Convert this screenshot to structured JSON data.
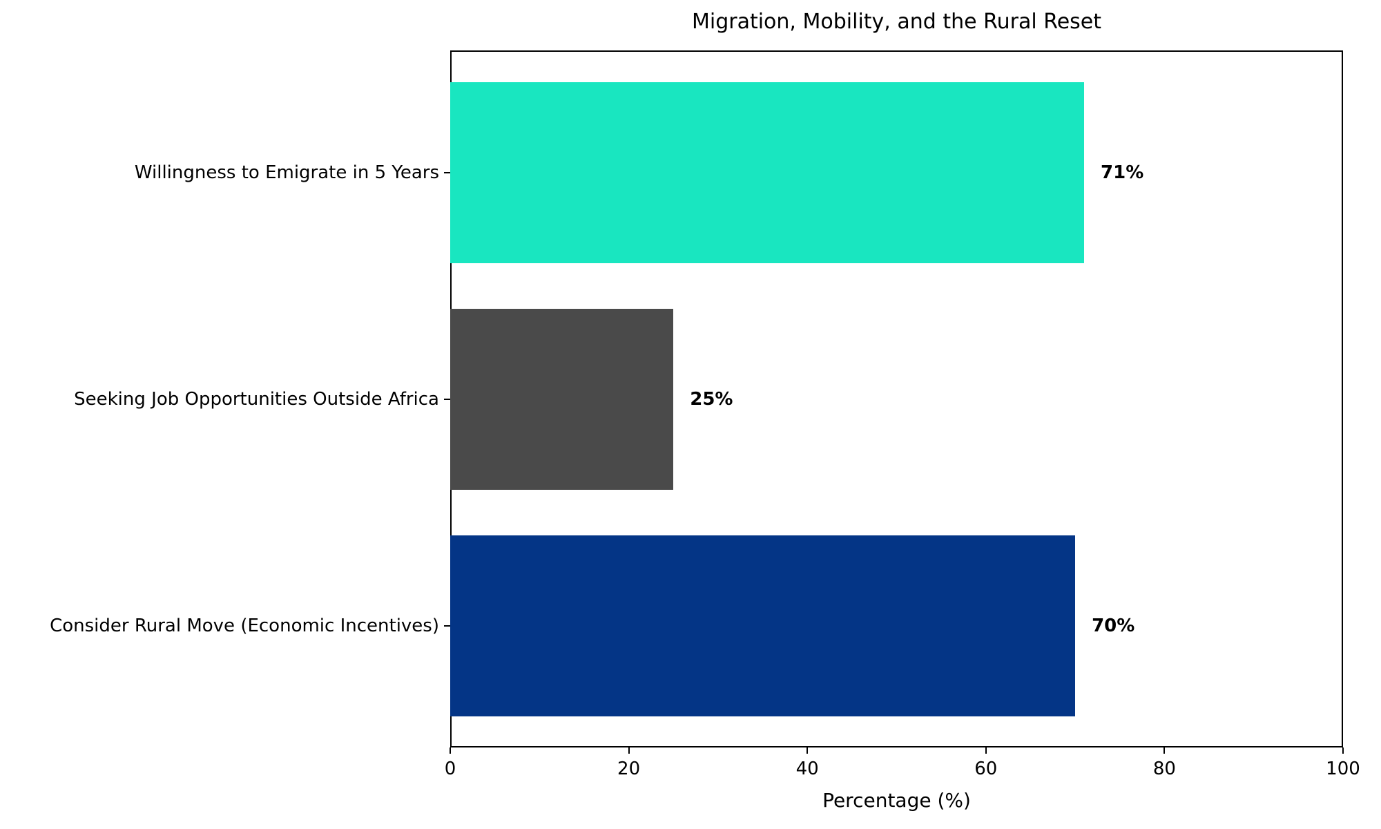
{
  "chart_data": {
    "type": "bar",
    "orientation": "horizontal",
    "title": "Migration, Mobility, and the Rural Reset",
    "categories": [
      "Willingness to Emigrate in 5 Years",
      "Seeking Job Opportunities Outside Africa",
      "Consider Rural Move (Economic Incentives)"
    ],
    "values": [
      71,
      25,
      70
    ],
    "value_labels": [
      "71%",
      "25%",
      "70%"
    ],
    "bar_colors": [
      "#19E6C0",
      "#4A4A4A",
      "#043586"
    ],
    "xlabel": "Percentage (%)",
    "ylabel": "",
    "xlim": [
      0,
      100
    ],
    "xticks": [
      0,
      20,
      40,
      60,
      80,
      100
    ],
    "xtick_labels": [
      "0",
      "20",
      "40",
      "60",
      "80",
      "100"
    ],
    "grid": false,
    "legend": null,
    "background_color": "#FFFFFF",
    "text_color": "#000000"
  }
}
